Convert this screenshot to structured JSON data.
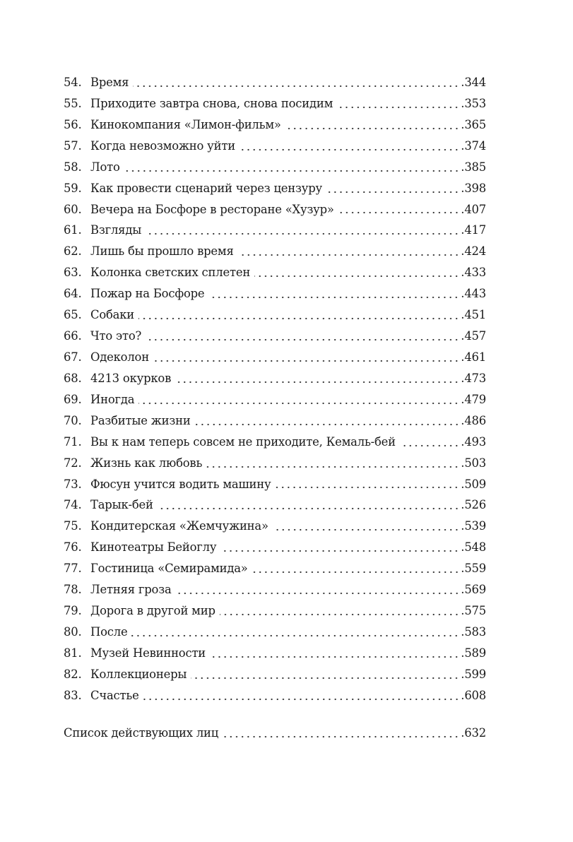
{
  "chapters": [
    {
      "num": "54.",
      "title": "Время",
      "page": "344"
    },
    {
      "num": "55.",
      "title": "Приходите завтра снова, снова посидим",
      "page": "353"
    },
    {
      "num": "56.",
      "title": "Кинокомпания «Лимон-фильм»",
      "page": "365"
    },
    {
      "num": "57.",
      "title": "Когда невозможно уйти",
      "page": "374"
    },
    {
      "num": "58.",
      "title": "Лото",
      "page": "385"
    },
    {
      "num": "59.",
      "title": "Как провести сценарий через цензуру",
      "page": "398"
    },
    {
      "num": "60.",
      "title": "Вечера на Босфоре в ресторане «Хузур»",
      "page": "407"
    },
    {
      "num": "61.",
      "title": "Взгляды",
      "page": "417"
    },
    {
      "num": "62.",
      "title": "Лишь бы прошло время",
      "page": "424"
    },
    {
      "num": "63.",
      "title": "Колонка светских сплетен",
      "page": "433"
    },
    {
      "num": "64.",
      "title": "Пожар на Босфоре",
      "page": "443"
    },
    {
      "num": "65.",
      "title": "Собаки",
      "page": "451"
    },
    {
      "num": "66.",
      "title": "Что это?",
      "page": "457"
    },
    {
      "num": "67.",
      "title": "Одеколон",
      "page": "461"
    },
    {
      "num": "68.",
      "title": "4213 окурков",
      "page": "473"
    },
    {
      "num": "69.",
      "title": "Иногда",
      "page": "479"
    },
    {
      "num": "70.",
      "title": "Разбитые жизни",
      "page": "486"
    },
    {
      "num": "71.",
      "title": "Вы к нам теперь совсем не приходите, Кемаль-бей",
      "page": "493"
    },
    {
      "num": "72.",
      "title": "Жизнь как любовь",
      "page": "503"
    },
    {
      "num": "73.",
      "title": "Фюсун учится водить машину",
      "page": "509"
    },
    {
      "num": "74.",
      "title": "Тарык-бей",
      "page": "526"
    },
    {
      "num": "75.",
      "title": "Кондитерская «Жемчужина»",
      "page": "539"
    },
    {
      "num": "76.",
      "title": "Кинотеатры Бейоглу",
      "page": "548"
    },
    {
      "num": "77.",
      "title": "Гостиница «Семирамида»",
      "page": "559"
    },
    {
      "num": "78.",
      "title": "Летняя гроза",
      "page": "569"
    },
    {
      "num": "79.",
      "title": "Дорога в другой мир",
      "page": "575"
    },
    {
      "num": "80.",
      "title": "После",
      "page": "583"
    },
    {
      "num": "81.",
      "title": "Музей Невинности",
      "page": "589"
    },
    {
      "num": "82.",
      "title": "Коллекционеры",
      "page": "599"
    },
    {
      "num": "83.",
      "title": "Счастье",
      "page": "608"
    }
  ],
  "appendix": {
    "title": "Список действующих лиц",
    "page": ".632"
  }
}
